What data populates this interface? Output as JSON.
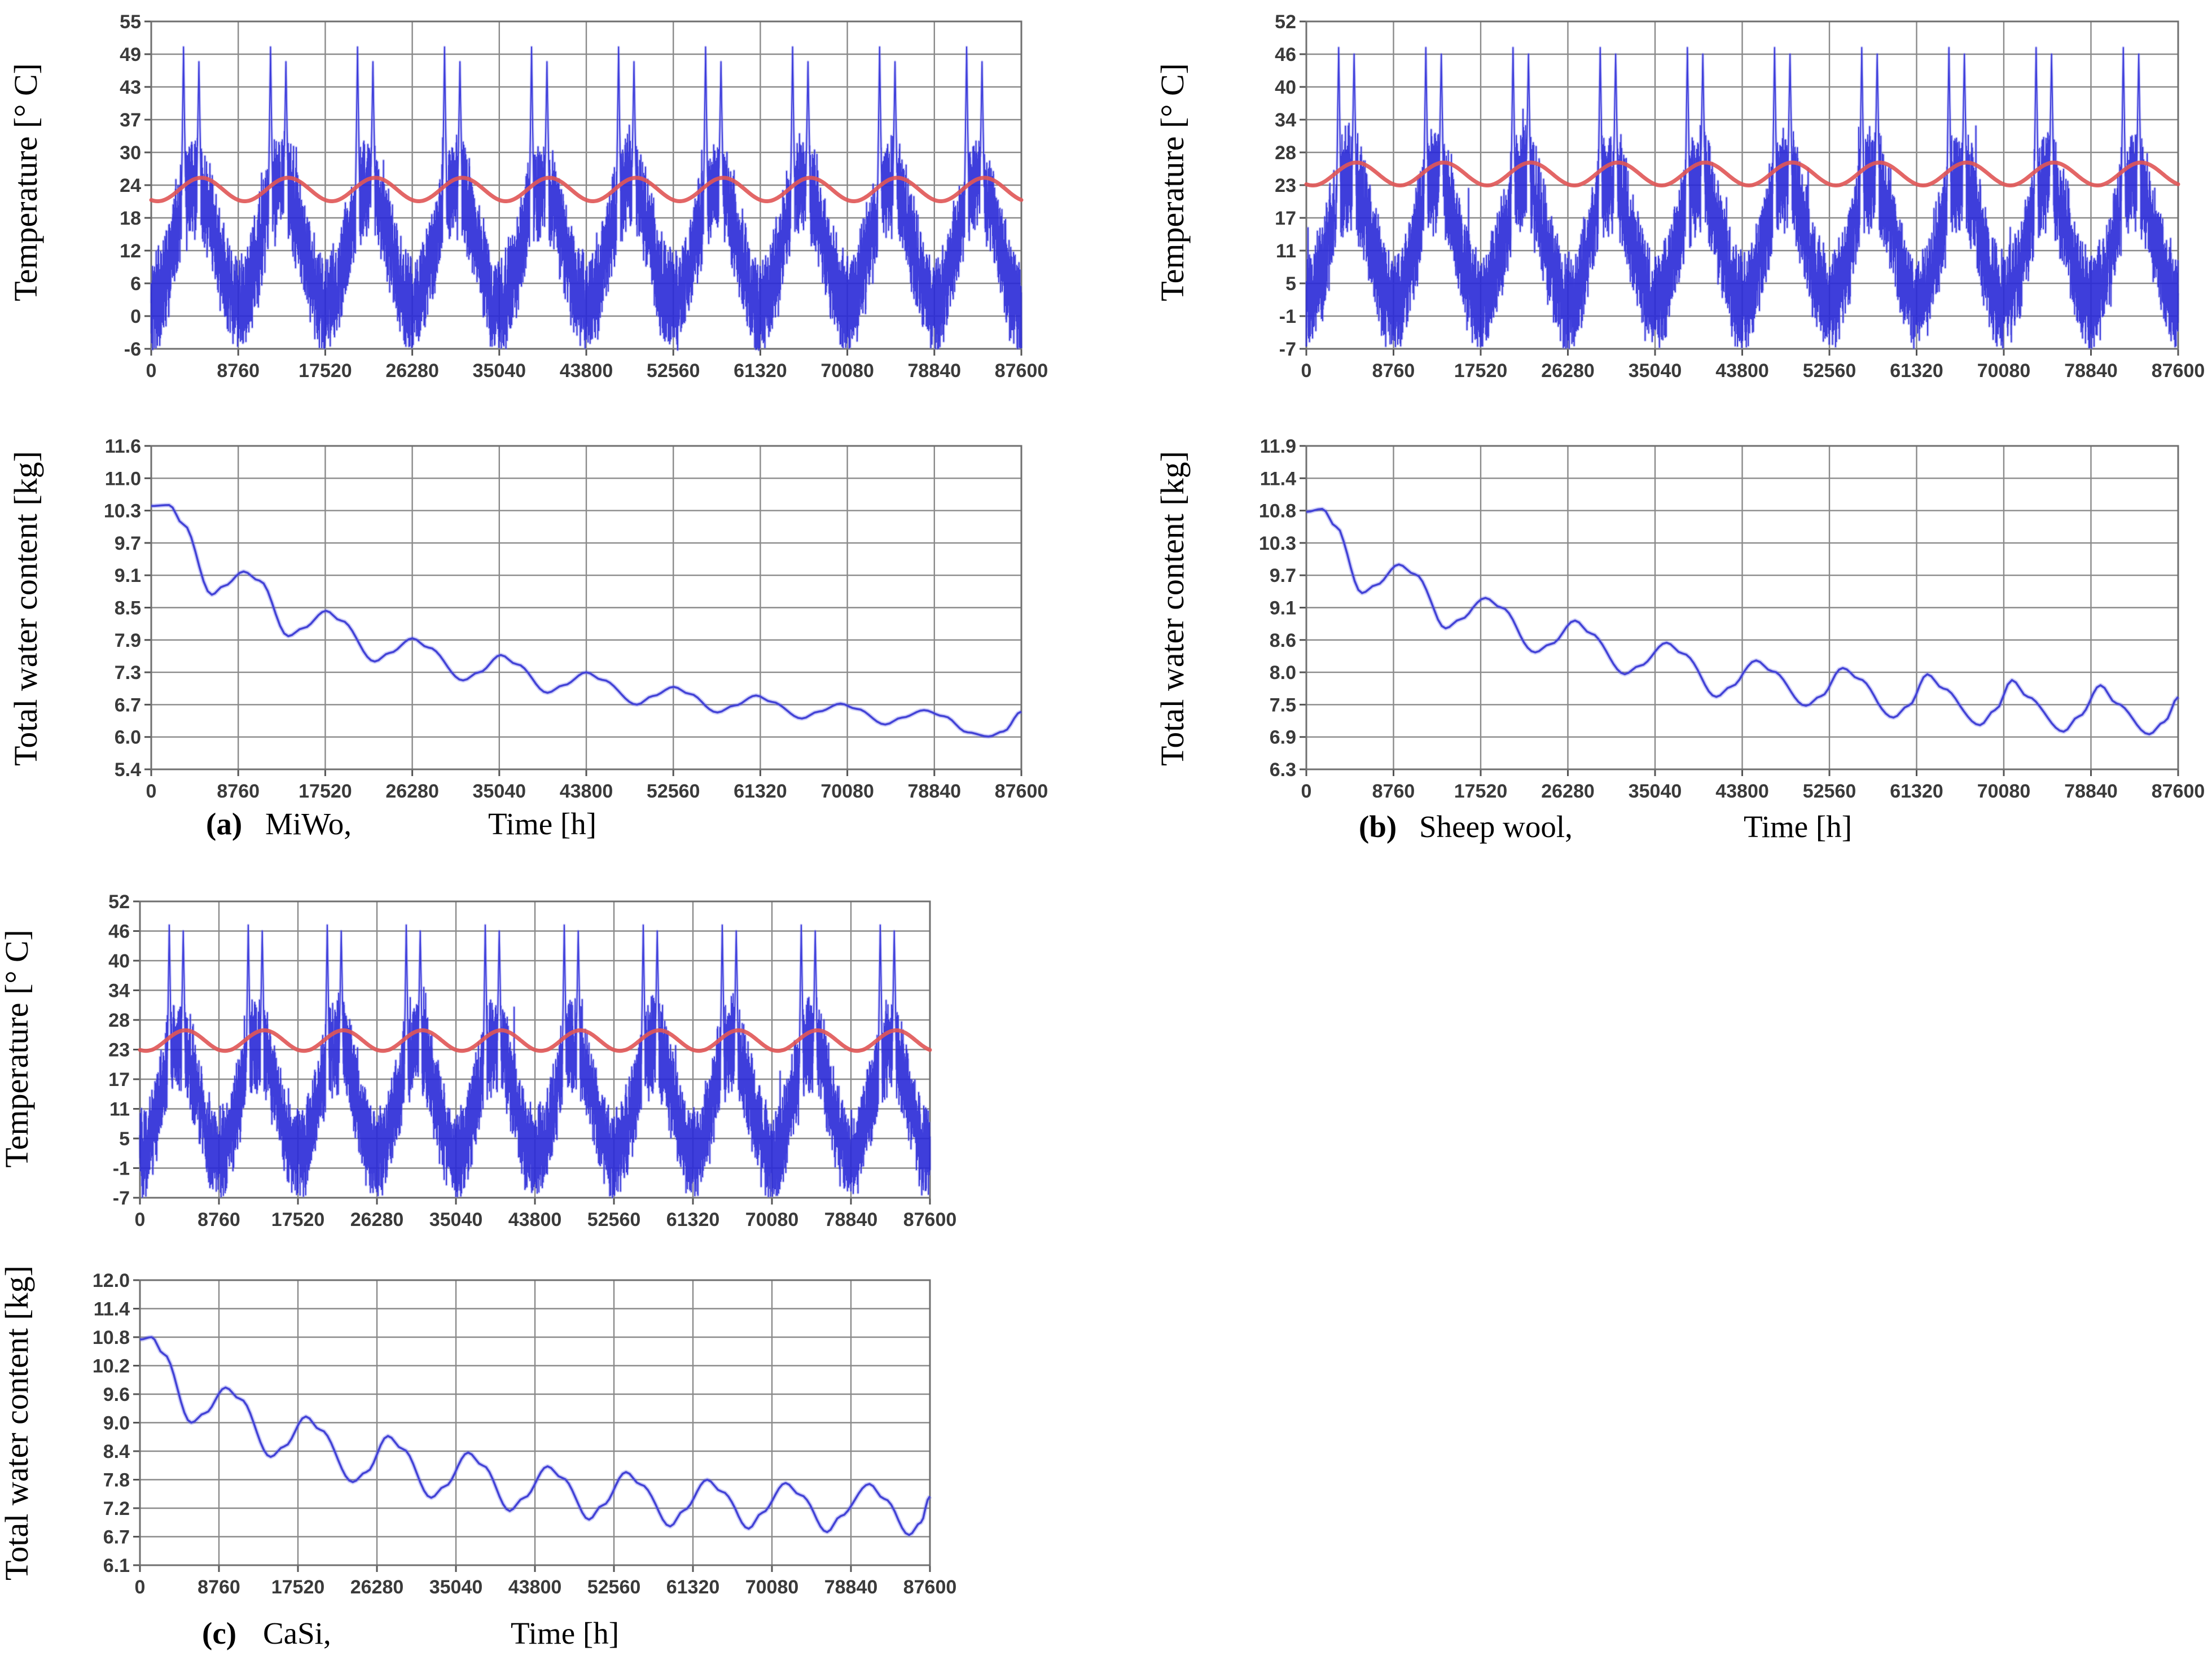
{
  "figure": {
    "background": "#ffffff",
    "grid_color": "#8a8a8a",
    "border_color": "#6f6f6f",
    "tick_color": "#555555",
    "tick_label_color": "#3a3a3a",
    "axis_label_color": "#000000",
    "blue_halo": "rgba(120,120,240,0.38)",
    "water_halo": "rgba(100,100,235,0.30)"
  },
  "chart_data": [
    {
      "id": "a-temp",
      "type": "line",
      "panel_label": "(a)",
      "material": "MiWo,",
      "xlabel": "Time [h]",
      "ylabel": "Temperature [° C]",
      "x_range": [
        0,
        87600
      ],
      "x_ticks": [
        0,
        8760,
        17520,
        26280,
        35040,
        43800,
        52560,
        61320,
        70080,
        78840,
        87600
      ],
      "y_ticks": [
        "55",
        "49",
        "43",
        "37",
        "30",
        "24",
        "18",
        "12",
        "6",
        "0",
        "-6"
      ],
      "series": [
        {
          "name": "outdoor-temperature",
          "kind": "noisy-hourly",
          "color": "#2424d6",
          "seed": 11,
          "season_mid": 13,
          "season_amp": 11,
          "noise": 8.5,
          "clamp_min": -5.7,
          "spikes": [
            {
              "t": 3250,
              "peak": 50.3
            },
            {
              "t": 4800,
              "peak": 47.6
            }
          ]
        },
        {
          "name": "indoor-temperature",
          "kind": "sine",
          "color": "#e05555",
          "mid": 23.2,
          "amp": 2.15,
          "phase_h": 650,
          "period_h": 8760
        }
      ]
    },
    {
      "id": "a-water",
      "type": "line",
      "panel_label": "(a)",
      "material": "MiWo,",
      "xlabel": "Time [h]",
      "ylabel": "Total water content [kg]",
      "x_range": [
        0,
        87600
      ],
      "x_ticks": [
        0,
        8760,
        17520,
        26280,
        35040,
        43800,
        52560,
        61320,
        70080,
        78840,
        87600
      ],
      "y_ticks": [
        "11.6",
        "11.0",
        "10.3",
        "9.7",
        "9.1",
        "8.5",
        "7.9",
        "7.3",
        "6.7",
        "6.0",
        "5.4"
      ],
      "series": [
        {
          "name": "total-water-content",
          "kind": "anchors",
          "color": "#4343d6",
          "points": [
            [
              0,
              10.4
            ],
            [
              1800,
              10.42
            ],
            [
              3200,
              10.05
            ],
            [
              6100,
              8.74
            ],
            [
              7300,
              8.9
            ],
            [
              9300,
              9.17
            ],
            [
              10900,
              9.0
            ],
            [
              13800,
              7.97
            ],
            [
              15300,
              8.12
            ],
            [
              17600,
              8.44
            ],
            [
              19100,
              8.26
            ],
            [
              22500,
              7.5
            ],
            [
              24000,
              7.66
            ],
            [
              26300,
              7.93
            ],
            [
              27900,
              7.76
            ],
            [
              31400,
              7.15
            ],
            [
              33000,
              7.3
            ],
            [
              35200,
              7.62
            ],
            [
              36800,
              7.45
            ],
            [
              39900,
              6.92
            ],
            [
              41500,
              7.06
            ],
            [
              43800,
              7.3
            ],
            [
              45400,
              7.16
            ],
            [
              48900,
              6.7
            ],
            [
              50500,
              6.86
            ],
            [
              52600,
              7.03
            ],
            [
              54200,
              6.9
            ],
            [
              57000,
              6.53
            ],
            [
              58700,
              6.68
            ],
            [
              60900,
              6.87
            ],
            [
              62500,
              6.75
            ],
            [
              65500,
              6.4
            ],
            [
              67200,
              6.55
            ],
            [
              69400,
              6.72
            ],
            [
              71000,
              6.61
            ],
            [
              73900,
              6.27
            ],
            [
              75600,
              6.42
            ],
            [
              77800,
              6.58
            ],
            [
              79800,
              6.45
            ],
            [
              82200,
              6.1
            ],
            [
              84300,
              6.01
            ],
            [
              85800,
              6.12
            ],
            [
              87600,
              6.55
            ]
          ]
        }
      ]
    },
    {
      "id": "b-temp",
      "type": "line",
      "panel_label": "(b)",
      "material": "Sheep wool,",
      "xlabel": "Time [h]",
      "ylabel": "Temperature [° C]",
      "x_range": [
        0,
        87600
      ],
      "x_ticks": [
        0,
        8760,
        17520,
        26280,
        35040,
        43800,
        52560,
        61320,
        70080,
        78840,
        87600
      ],
      "y_ticks": [
        "52",
        "46",
        "40",
        "34",
        "28",
        "23",
        "17",
        "11",
        "5",
        "-1",
        "-7"
      ],
      "series": [
        {
          "name": "outdoor-temperature",
          "kind": "noisy-hourly",
          "color": "#2424d6",
          "seed": 23,
          "season_mid": 12.5,
          "season_amp": 11,
          "noise": 8.5,
          "clamp_min": -6.4,
          "spikes": [
            {
              "t": 3250,
              "peak": 47.2
            },
            {
              "t": 4800,
              "peak": 46.0
            }
          ]
        },
        {
          "name": "indoor-temperature",
          "kind": "sine",
          "color": "#e05555",
          "mid": 24.7,
          "amp": 1.75,
          "phase_h": 650,
          "period_h": 8760
        }
      ]
    },
    {
      "id": "b-water",
      "type": "line",
      "panel_label": "(b)",
      "material": "Sheep wool,",
      "xlabel": "Time [h]",
      "ylabel": "Total water content [kg]",
      "x_range": [
        0,
        87600
      ],
      "x_ticks": [
        0,
        8760,
        17520,
        26280,
        35040,
        43800,
        52560,
        61320,
        70080,
        78840,
        87600
      ],
      "y_ticks": [
        "11.9",
        "11.4",
        "10.8",
        "10.3",
        "9.7",
        "9.1",
        "8.6",
        "8.0",
        "7.5",
        "6.9",
        "6.3"
      ],
      "series": [
        {
          "name": "total-water-content",
          "kind": "anchors",
          "color": "#4343d6",
          "points": [
            [
              0,
              10.78
            ],
            [
              1600,
              10.83
            ],
            [
              3000,
              10.55
            ],
            [
              5600,
              9.37
            ],
            [
              7000,
              9.52
            ],
            [
              9300,
              9.9
            ],
            [
              10900,
              9.72
            ],
            [
              14000,
              8.78
            ],
            [
              15500,
              8.92
            ],
            [
              18000,
              9.28
            ],
            [
              19600,
              9.1
            ],
            [
              23000,
              8.37
            ],
            [
              24500,
              8.52
            ],
            [
              27000,
              8.9
            ],
            [
              28600,
              8.7
            ],
            [
              32000,
              7.97
            ],
            [
              33500,
              8.12
            ],
            [
              36200,
              8.55
            ],
            [
              37800,
              8.35
            ],
            [
              41200,
              7.62
            ],
            [
              42700,
              7.78
            ],
            [
              45200,
              8.22
            ],
            [
              46800,
              8.02
            ],
            [
              50200,
              7.48
            ],
            [
              51700,
              7.63
            ],
            [
              53900,
              8.08
            ],
            [
              55500,
              7.9
            ],
            [
              59000,
              7.26
            ],
            [
              60500,
              7.48
            ],
            [
              62400,
              7.97
            ],
            [
              64000,
              7.75
            ],
            [
              67700,
              7.12
            ],
            [
              69200,
              7.4
            ],
            [
              70900,
              7.88
            ],
            [
              72500,
              7.62
            ],
            [
              76100,
              7.0
            ],
            [
              77600,
              7.28
            ],
            [
              79800,
              7.8
            ],
            [
              81400,
              7.52
            ],
            [
              84700,
              6.95
            ],
            [
              86200,
              7.18
            ],
            [
              87600,
              7.62
            ]
          ]
        }
      ]
    },
    {
      "id": "c-temp",
      "type": "line",
      "panel_label": "(c)",
      "material": "CaSi,",
      "xlabel": "Time [h]",
      "ylabel": "Temperature [° C]",
      "x_range": [
        0,
        87600
      ],
      "x_ticks": [
        0,
        8760,
        17520,
        26280,
        35040,
        43800,
        52560,
        61320,
        70080,
        78840,
        87600
      ],
      "y_ticks": [
        "52",
        "46",
        "40",
        "34",
        "28",
        "23",
        "17",
        "11",
        "5",
        "-1",
        "-7"
      ],
      "series": [
        {
          "name": "outdoor-temperature",
          "kind": "noisy-hourly",
          "color": "#2424d6",
          "seed": 37,
          "season_mid": 12.5,
          "season_amp": 11,
          "noise": 8.5,
          "clamp_min": -6.4,
          "spikes": [
            {
              "t": 3250,
              "peak": 47.2
            },
            {
              "t": 4800,
              "peak": 46.0
            }
          ]
        },
        {
          "name": "indoor-temperature",
          "kind": "sine",
          "color": "#e05555",
          "mid": 24.5,
          "amp": 1.75,
          "phase_h": 650,
          "period_h": 8760
        }
      ]
    },
    {
      "id": "c-water",
      "type": "line",
      "panel_label": "(c)",
      "material": "CaSi,",
      "xlabel": "Time [h]",
      "ylabel": "Total water content [kg]",
      "x_range": [
        0,
        87600
      ],
      "x_ticks": [
        0,
        8760,
        17520,
        26280,
        35040,
        43800,
        52560,
        61320,
        70080,
        78840,
        87600
      ],
      "y_ticks": [
        "12.0",
        "11.4",
        "10.8",
        "10.2",
        "9.6",
        "9.0",
        "8.4",
        "7.8",
        "7.2",
        "6.7",
        "6.1"
      ],
      "series": [
        {
          "name": "total-water-content",
          "kind": "anchors",
          "color": "#4343d6",
          "points": [
            [
              0,
              10.75
            ],
            [
              1300,
              10.8
            ],
            [
              2600,
              10.45
            ],
            [
              5700,
              9.0
            ],
            [
              7200,
              9.2
            ],
            [
              9500,
              9.74
            ],
            [
              11100,
              9.5
            ],
            [
              14500,
              8.28
            ],
            [
              16000,
              8.5
            ],
            [
              18400,
              9.13
            ],
            [
              20000,
              8.85
            ],
            [
              23600,
              7.75
            ],
            [
              25100,
              7.96
            ],
            [
              27500,
              8.72
            ],
            [
              29100,
              8.45
            ],
            [
              32300,
              7.42
            ],
            [
              33800,
              7.66
            ],
            [
              36400,
              8.37
            ],
            [
              38000,
              8.1
            ],
            [
              41000,
              7.15
            ],
            [
              42600,
              7.42
            ],
            [
              45200,
              8.08
            ],
            [
              46800,
              7.84
            ],
            [
              49800,
              7.0
            ],
            [
              51300,
              7.26
            ],
            [
              53900,
              7.96
            ],
            [
              55500,
              7.7
            ],
            [
              58800,
              6.88
            ],
            [
              60300,
              7.16
            ],
            [
              62900,
              7.8
            ],
            [
              64500,
              7.55
            ],
            [
              67500,
              6.84
            ],
            [
              69000,
              7.12
            ],
            [
              71600,
              7.73
            ],
            [
              73200,
              7.48
            ],
            [
              76200,
              6.78
            ],
            [
              77700,
              7.06
            ],
            [
              80900,
              7.71
            ],
            [
              82500,
              7.4
            ],
            [
              85300,
              6.73
            ],
            [
              86600,
              6.95
            ],
            [
              87600,
              7.45
            ]
          ]
        }
      ]
    }
  ]
}
